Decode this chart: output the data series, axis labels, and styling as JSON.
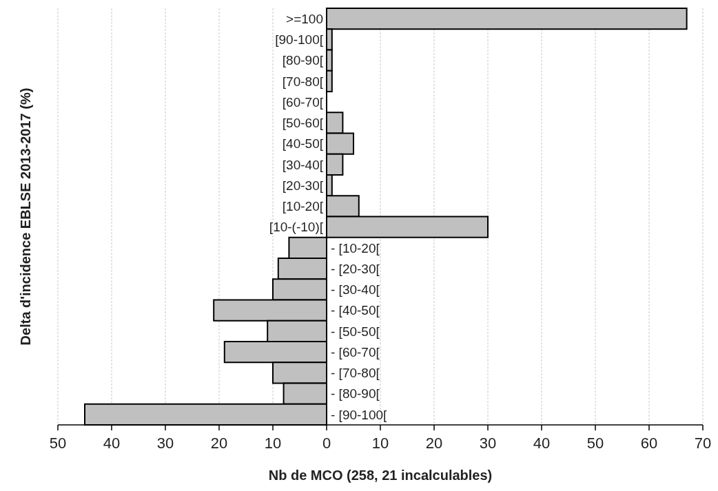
{
  "chart_data": {
    "type": "bar",
    "orientation": "horizontal",
    "xlabel": "Nb de MCO (258, 21 incalculables)",
    "ylabel": "Delta d'incidence EBLSE 2013-2017 (%)",
    "categories": [
      ">=100",
      "[90-100[",
      "[80-90[",
      "[70-80[",
      "[60-70[",
      "[50-60[",
      "[40-50[",
      "[30-40[",
      "[20-30[",
      "[10-20[",
      "[10-(-10)[",
      "- [10-20[",
      "- [20-30[",
      "- [30-40[",
      "- [40-50[",
      "- [50-50[",
      "- [60-70[",
      "- [70-80[",
      "- [80-90[",
      "- [90-100["
    ],
    "values": [
      67,
      1,
      1,
      1,
      0,
      3,
      5,
      3,
      1,
      6,
      30,
      -7,
      -9,
      -10,
      -21,
      -11,
      -19,
      -10,
      -8,
      -45
    ],
    "color": "#c0c0c0",
    "xlim": [
      -50,
      70
    ],
    "xticks": [
      {
        "value": -50,
        "label": "50"
      },
      {
        "value": -40,
        "label": "40"
      },
      {
        "value": -30,
        "label": "30"
      },
      {
        "value": -20,
        "label": "20"
      },
      {
        "value": -10,
        "label": "10"
      },
      0,
      10,
      20,
      30,
      40,
      50,
      60,
      70
    ],
    "grid": "x"
  }
}
